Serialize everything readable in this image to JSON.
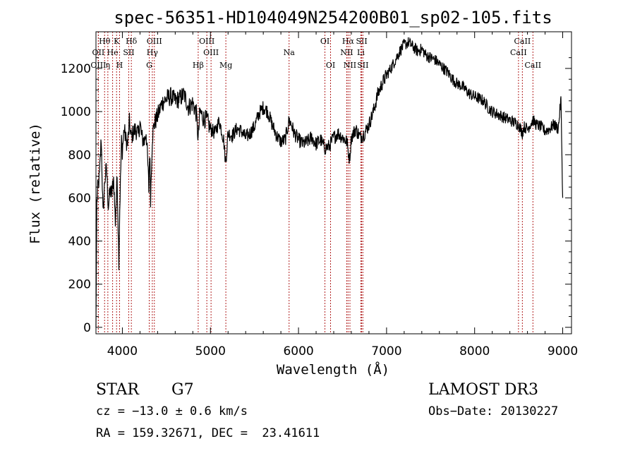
{
  "chart_data": {
    "type": "line",
    "title": "spec-56351-HD104049N254200B01_sp02-105.fits",
    "xlabel": "Wavelength (Å)",
    "ylabel": "Flux (relative)",
    "xlim": [
      3700,
      9100
    ],
    "ylim": [
      -30,
      1370
    ],
    "grid": false,
    "x_ticks": [
      "4000",
      "5000",
      "6000",
      "7000",
      "8000",
      "9000"
    ],
    "y_ticks": [
      "0",
      "200",
      "400",
      "600",
      "800",
      "1000",
      "1200"
    ],
    "series": [
      {
        "x": [
          3700,
          3710,
          3720,
          3740,
          3760,
          3780,
          3800,
          3820,
          3840,
          3860,
          3880,
          3900,
          3920,
          3940,
          3960,
          3970,
          3990,
          4000,
          4020,
          4040,
          4060,
          4080,
          4100,
          4120,
          4150,
          4180,
          4200,
          4220,
          4250,
          4270,
          4290,
          4300,
          4310,
          4320,
          4340,
          4360,
          4400,
          4450,
          4500,
          4550,
          4600,
          4650,
          4700,
          4750,
          4800,
          4840,
          4861,
          4880,
          4920,
          4960,
          5000,
          5050,
          5100,
          5150,
          5173,
          5200,
          5250,
          5300,
          5350,
          5400,
          5450,
          5500,
          5550,
          5600,
          5650,
          5700,
          5750,
          5800,
          5850,
          5893,
          5920,
          5950,
          6000,
          6050,
          6100,
          6150,
          6200,
          6250,
          6300,
          6350,
          6400,
          6450,
          6500,
          6550,
          6563,
          6580,
          6600,
          6650,
          6700,
          6750,
          6800,
          6850,
          6900,
          6950,
          7000,
          7050,
          7100,
          7150,
          7200,
          7250,
          7300,
          7350,
          7400,
          7450,
          7500,
          7550,
          7600,
          7650,
          7700,
          7750,
          7800,
          7850,
          7900,
          7950,
          8000,
          8050,
          8100,
          8150,
          8200,
          8250,
          8300,
          8350,
          8400,
          8450,
          8500,
          8542,
          8560,
          8600,
          8662,
          8700,
          8750,
          8800,
          8850,
          8900,
          8950,
          8980,
          9000
        ],
        "values": [
          0,
          580,
          640,
          700,
          880,
          520,
          680,
          740,
          560,
          630,
          620,
          690,
          490,
          700,
          310,
          550,
          860,
          820,
          920,
          870,
          850,
          950,
          880,
          900,
          920,
          890,
          950,
          880,
          860,
          910,
          750,
          640,
          820,
          600,
          880,
          940,
          980,
          1040,
          1060,
          1070,
          1050,
          1060,
          1080,
          1020,
          1040,
          990,
          870,
          1000,
          970,
          960,
          920,
          900,
          960,
          870,
          760,
          900,
          890,
          920,
          910,
          880,
          900,
          930,
          990,
          1020,
          1000,
          940,
          890,
          860,
          870,
          960,
          940,
          900,
          870,
          850,
          860,
          880,
          850,
          870,
          830,
          840,
          880,
          900,
          880,
          860,
          820,
          780,
          880,
          920,
          880,
          900,
          940,
          1000,
          1080,
          1130,
          1170,
          1200,
          1240,
          1280,
          1310,
          1320,
          1300,
          1280,
          1290,
          1260,
          1250,
          1240,
          1220,
          1200,
          1180,
          1150,
          1130,
          1120,
          1100,
          1080,
          1070,
          1060,
          1050,
          1020,
          1000,
          990,
          980,
          970,
          960,
          950,
          940,
          900,
          930,
          920,
          960,
          940,
          930,
          910,
          920,
          940,
          920,
          1060,
          600
        ]
      }
    ],
    "lines": [
      {
        "label": "Hθ",
        "x": 3798,
        "row": 1
      },
      {
        "label": "OII",
        "x": 3727,
        "row": 2
      },
      {
        "label": "OIII",
        "x": 3727,
        "row": 3
      },
      {
        "label": "He",
        "x": 3889,
        "row": 2
      },
      {
        "label": "η",
        "x": 3835,
        "row": 3
      },
      {
        "label": "K",
        "x": 3934,
        "row": 1
      },
      {
        "label": "SII",
        "x": 4072,
        "row": 2
      },
      {
        "label": "H",
        "x": 3968,
        "row": 3
      },
      {
        "label": "Hδ",
        "x": 4102,
        "row": 1
      },
      {
        "label": "OIII",
        "x": 4363,
        "row": 1
      },
      {
        "label": "Hγ",
        "x": 4340,
        "row": 2
      },
      {
        "label": "G",
        "x": 4305,
        "row": 3
      },
      {
        "label": "Hβ",
        "x": 4861,
        "row": 3
      },
      {
        "label": "OIII",
        "x": 4959,
        "row": 1
      },
      {
        "label": "OIII",
        "x": 5007,
        "row": 2
      },
      {
        "label": "Mg",
        "x": 5175,
        "row": 3
      },
      {
        "label": "Na",
        "x": 5893,
        "row": 2
      },
      {
        "label": "OI",
        "x": 6300,
        "row": 1
      },
      {
        "label": "OI",
        "x": 6364,
        "row": 3
      },
      {
        "label": "Hα",
        "x": 6563,
        "row": 1
      },
      {
        "label": "SII",
        "x": 6717,
        "row": 1
      },
      {
        "label": "NII",
        "x": 6548,
        "row": 2
      },
      {
        "label": "Li",
        "x": 6708,
        "row": 2
      },
      {
        "label": "NII",
        "x": 6584,
        "row": 3
      },
      {
        "label": "SII",
        "x": 6731,
        "row": 3
      },
      {
        "label": "CaII",
        "x": 8542,
        "row": 1
      },
      {
        "label": "CaII",
        "x": 8498,
        "row": 2
      },
      {
        "label": "CaII",
        "x": 8662,
        "row": 3
      }
    ]
  },
  "info": {
    "object_class": "STAR",
    "subclass": "G7",
    "survey": "LAMOST DR3",
    "cz": "cz = −13.0 ± 0.6 km/s",
    "obs_date": "Obs−Date: 20130227",
    "coords": "RA = 159.32671, DEC =  23.41611"
  }
}
